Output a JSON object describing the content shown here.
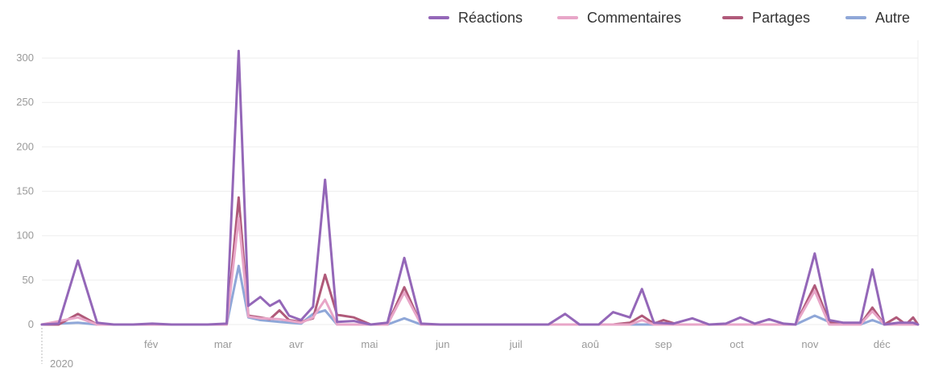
{
  "chart_data": {
    "type": "line",
    "title": "",
    "xlabel": "",
    "ylabel": "",
    "year_label": "2020",
    "ylim": [
      0,
      320
    ],
    "yticks": [
      0,
      50,
      100,
      150,
      200,
      250,
      300
    ],
    "ytick_labels": [
      "0",
      "50",
      "100",
      "150",
      "200",
      "250",
      "300"
    ],
    "xlim": [
      "2020-01-01",
      "2020-12-31"
    ],
    "month_ticks": [
      {
        "date": "2020-02-01",
        "label": "fév"
      },
      {
        "date": "2020-03-01",
        "label": "mar"
      },
      {
        "date": "2020-04-01",
        "label": "avr"
      },
      {
        "date": "2020-05-01",
        "label": "mai"
      },
      {
        "date": "2020-06-01",
        "label": "jun"
      },
      {
        "date": "2020-07-01",
        "label": "juil"
      },
      {
        "date": "2020-08-01",
        "label": "aoû"
      },
      {
        "date": "2020-09-01",
        "label": "sep"
      },
      {
        "date": "2020-10-01",
        "label": "oct"
      },
      {
        "date": "2020-11-01",
        "label": "nov"
      },
      {
        "date": "2020-12-01",
        "label": "déc"
      }
    ],
    "grid": true,
    "legend_position": "top-right",
    "series": [
      {
        "name": "Réactions",
        "color": "#9467b8",
        "points": [
          [
            "2020-01-01",
            0
          ],
          [
            "2020-01-08",
            1
          ],
          [
            "2020-01-16",
            72
          ],
          [
            "2020-01-24",
            2
          ],
          [
            "2020-01-31",
            0
          ],
          [
            "2020-02-08",
            0
          ],
          [
            "2020-02-16",
            1
          ],
          [
            "2020-02-24",
            0
          ],
          [
            "2020-03-02",
            0
          ],
          [
            "2020-03-10",
            0
          ],
          [
            "2020-03-18",
            1
          ],
          [
            "2020-03-23",
            308
          ],
          [
            "2020-03-27",
            21
          ],
          [
            "2020-04-01",
            31
          ],
          [
            "2020-04-05",
            21
          ],
          [
            "2020-04-09",
            27
          ],
          [
            "2020-04-13",
            10
          ],
          [
            "2020-04-18",
            5
          ],
          [
            "2020-04-23",
            20
          ],
          [
            "2020-04-28",
            163
          ],
          [
            "2020-05-03",
            3
          ],
          [
            "2020-05-10",
            4
          ],
          [
            "2020-05-17",
            0
          ],
          [
            "2020-05-24",
            2
          ],
          [
            "2020-05-31",
            75
          ],
          [
            "2020-06-07",
            1
          ],
          [
            "2020-06-15",
            0
          ],
          [
            "2020-06-30",
            0
          ],
          [
            "2020-07-15",
            0
          ],
          [
            "2020-07-30",
            0
          ],
          [
            "2020-08-06",
            12
          ],
          [
            "2020-08-12",
            0
          ],
          [
            "2020-08-20",
            0
          ],
          [
            "2020-08-26",
            14
          ],
          [
            "2020-09-02",
            8
          ],
          [
            "2020-09-07",
            40
          ],
          [
            "2020-09-12",
            2
          ],
          [
            "2020-09-20",
            1
          ],
          [
            "2020-09-28",
            7
          ],
          [
            "2020-10-05",
            0
          ],
          [
            "2020-10-12",
            1
          ],
          [
            "2020-10-18",
            8
          ],
          [
            "2020-10-24",
            1
          ],
          [
            "2020-10-30",
            6
          ],
          [
            "2020-11-05",
            1
          ],
          [
            "2020-11-10",
            0
          ],
          [
            "2020-11-18",
            80
          ],
          [
            "2020-11-24",
            5
          ],
          [
            "2020-11-30",
            2
          ],
          [
            "2020-12-07",
            2
          ],
          [
            "2020-12-12",
            62
          ],
          [
            "2020-12-17",
            0
          ],
          [
            "2020-12-23",
            2
          ],
          [
            "2020-12-29",
            2
          ],
          [
            "2020-12-31",
            0
          ]
        ]
      },
      {
        "name": "Commentaires",
        "color": "#e8a6c8",
        "points": [
          [
            "2020-01-01",
            0
          ],
          [
            "2020-01-16",
            8
          ],
          [
            "2020-01-24",
            0
          ],
          [
            "2020-03-18",
            0
          ],
          [
            "2020-03-23",
            120
          ],
          [
            "2020-03-27",
            9
          ],
          [
            "2020-04-01",
            7
          ],
          [
            "2020-04-09",
            6
          ],
          [
            "2020-04-18",
            2
          ],
          [
            "2020-04-23",
            8
          ],
          [
            "2020-04-28",
            28
          ],
          [
            "2020-05-03",
            0
          ],
          [
            "2020-05-24",
            0
          ],
          [
            "2020-05-31",
            36
          ],
          [
            "2020-06-07",
            0
          ],
          [
            "2020-09-02",
            0
          ],
          [
            "2020-09-07",
            5
          ],
          [
            "2020-09-12",
            0
          ],
          [
            "2020-11-10",
            0
          ],
          [
            "2020-11-18",
            38
          ],
          [
            "2020-11-24",
            0
          ],
          [
            "2020-12-07",
            0
          ],
          [
            "2020-12-12",
            15
          ],
          [
            "2020-12-17",
            0
          ],
          [
            "2020-12-31",
            0
          ]
        ]
      },
      {
        "name": "Partages",
        "color": "#b05a7a",
        "points": [
          [
            "2020-01-01",
            0
          ],
          [
            "2020-01-08",
            0
          ],
          [
            "2020-01-16",
            12
          ],
          [
            "2020-01-24",
            0
          ],
          [
            "2020-03-18",
            0
          ],
          [
            "2020-03-23",
            143
          ],
          [
            "2020-03-27",
            10
          ],
          [
            "2020-04-01",
            8
          ],
          [
            "2020-04-05",
            6
          ],
          [
            "2020-04-09",
            16
          ],
          [
            "2020-04-13",
            5
          ],
          [
            "2020-04-18",
            3
          ],
          [
            "2020-04-23",
            7
          ],
          [
            "2020-04-28",
            56
          ],
          [
            "2020-05-03",
            11
          ],
          [
            "2020-05-10",
            8
          ],
          [
            "2020-05-17",
            0
          ],
          [
            "2020-05-24",
            0
          ],
          [
            "2020-05-31",
            42
          ],
          [
            "2020-06-07",
            0
          ],
          [
            "2020-08-26",
            0
          ],
          [
            "2020-09-02",
            2
          ],
          [
            "2020-09-07",
            10
          ],
          [
            "2020-09-12",
            1
          ],
          [
            "2020-09-16",
            5
          ],
          [
            "2020-09-22",
            0
          ],
          [
            "2020-11-10",
            0
          ],
          [
            "2020-11-18",
            44
          ],
          [
            "2020-11-24",
            3
          ],
          [
            "2020-11-30",
            0
          ],
          [
            "2020-12-07",
            0
          ],
          [
            "2020-12-12",
            19
          ],
          [
            "2020-12-17",
            0
          ],
          [
            "2020-12-22",
            8
          ],
          [
            "2020-12-26",
            0
          ],
          [
            "2020-12-29",
            8
          ],
          [
            "2020-12-31",
            0
          ]
        ]
      },
      {
        "name": "Autre",
        "color": "#8fa7d8",
        "points": [
          [
            "2020-01-01",
            0
          ],
          [
            "2020-01-16",
            2
          ],
          [
            "2020-01-24",
            0
          ],
          [
            "2020-03-18",
            0
          ],
          [
            "2020-03-23",
            66
          ],
          [
            "2020-03-27",
            8
          ],
          [
            "2020-04-01",
            5
          ],
          [
            "2020-04-09",
            3
          ],
          [
            "2020-04-18",
            1
          ],
          [
            "2020-04-23",
            12
          ],
          [
            "2020-04-28",
            16
          ],
          [
            "2020-05-03",
            0
          ],
          [
            "2020-05-24",
            0
          ],
          [
            "2020-05-31",
            7
          ],
          [
            "2020-06-07",
            0
          ],
          [
            "2020-11-10",
            0
          ],
          [
            "2020-11-18",
            10
          ],
          [
            "2020-11-24",
            3
          ],
          [
            "2020-11-30",
            0
          ],
          [
            "2020-12-07",
            0
          ],
          [
            "2020-12-12",
            5
          ],
          [
            "2020-12-17",
            0
          ],
          [
            "2020-12-31",
            0
          ]
        ]
      }
    ]
  }
}
